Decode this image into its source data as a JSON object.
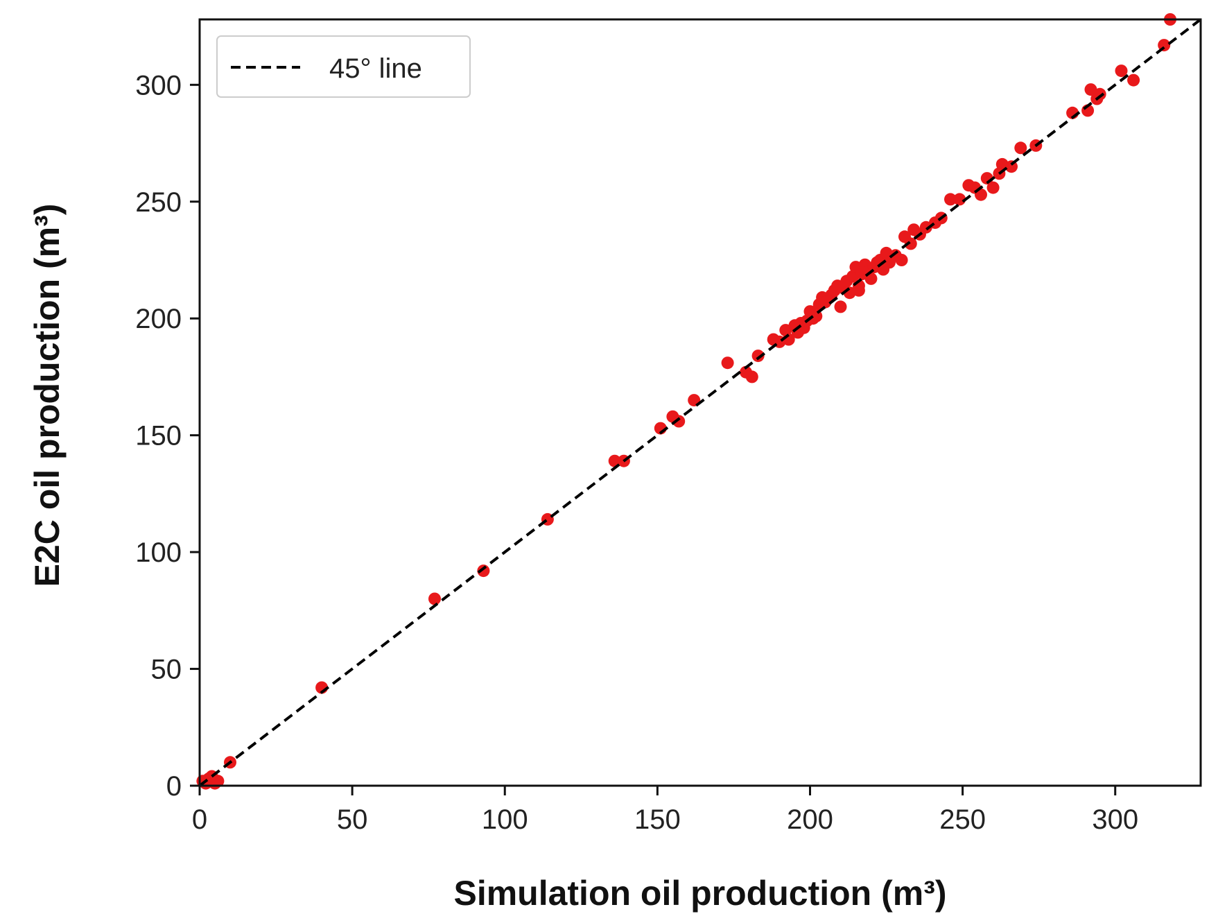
{
  "chart_data": {
    "type": "scatter",
    "xlabel": "Simulation oil production (m³)",
    "ylabel": "E2C oil production (m³)",
    "xlim": [
      0,
      328
    ],
    "ylim": [
      0,
      328
    ],
    "xticks": [
      0,
      50,
      100,
      150,
      200,
      250,
      300
    ],
    "yticks": [
      0,
      50,
      100,
      150,
      200,
      250,
      300
    ],
    "grid": false,
    "legend": {
      "position": "top-left",
      "entries": [
        {
          "label": "45° line",
          "style": "dashed",
          "color": "#000000"
        }
      ]
    },
    "reference_line": {
      "label": "45° line",
      "from": [
        0,
        0
      ],
      "to": [
        328,
        328
      ],
      "color": "#000000"
    },
    "point_color": "#e8191b",
    "points": [
      [
        1,
        2
      ],
      [
        2,
        1
      ],
      [
        3,
        3
      ],
      [
        4,
        4
      ],
      [
        5,
        1
      ],
      [
        6,
        2
      ],
      [
        10,
        10
      ],
      [
        40,
        42
      ],
      [
        77,
        80
      ],
      [
        93,
        92
      ],
      [
        114,
        114
      ],
      [
        136,
        139
      ],
      [
        139,
        139
      ],
      [
        151,
        153
      ],
      [
        155,
        158
      ],
      [
        157,
        156
      ],
      [
        162,
        165
      ],
      [
        173,
        181
      ],
      [
        179,
        177
      ],
      [
        181,
        175
      ],
      [
        183,
        184
      ],
      [
        188,
        191
      ],
      [
        190,
        190
      ],
      [
        192,
        195
      ],
      [
        193,
        191
      ],
      [
        195,
        197
      ],
      [
        196,
        194
      ],
      [
        197,
        198
      ],
      [
        198,
        196
      ],
      [
        199,
        199
      ],
      [
        200,
        203
      ],
      [
        201,
        200
      ],
      [
        202,
        201
      ],
      [
        203,
        206
      ],
      [
        204,
        209
      ],
      [
        205,
        207
      ],
      [
        207,
        210
      ],
      [
        208,
        212
      ],
      [
        209,
        214
      ],
      [
        210,
        205
      ],
      [
        211,
        213
      ],
      [
        212,
        216
      ],
      [
        213,
        211
      ],
      [
        214,
        218
      ],
      [
        215,
        222
      ],
      [
        216,
        214
      ],
      [
        216,
        212
      ],
      [
        217,
        219
      ],
      [
        218,
        223
      ],
      [
        219,
        220
      ],
      [
        220,
        217
      ],
      [
        221,
        222
      ],
      [
        222,
        224
      ],
      [
        223,
        225
      ],
      [
        224,
        221
      ],
      [
        225,
        228
      ],
      [
        226,
        224
      ],
      [
        228,
        227
      ],
      [
        230,
        225
      ],
      [
        231,
        235
      ],
      [
        233,
        232
      ],
      [
        234,
        238
      ],
      [
        236,
        236
      ],
      [
        238,
        239
      ],
      [
        241,
        241
      ],
      [
        243,
        243
      ],
      [
        246,
        251
      ],
      [
        249,
        251
      ],
      [
        252,
        257
      ],
      [
        254,
        256
      ],
      [
        256,
        253
      ],
      [
        258,
        260
      ],
      [
        260,
        256
      ],
      [
        262,
        262
      ],
      [
        263,
        266
      ],
      [
        266,
        265
      ],
      [
        269,
        273
      ],
      [
        274,
        274
      ],
      [
        286,
        288
      ],
      [
        291,
        289
      ],
      [
        292,
        298
      ],
      [
        294,
        294
      ],
      [
        295,
        296
      ],
      [
        302,
        306
      ],
      [
        306,
        302
      ],
      [
        316,
        317
      ],
      [
        318,
        328
      ]
    ]
  }
}
